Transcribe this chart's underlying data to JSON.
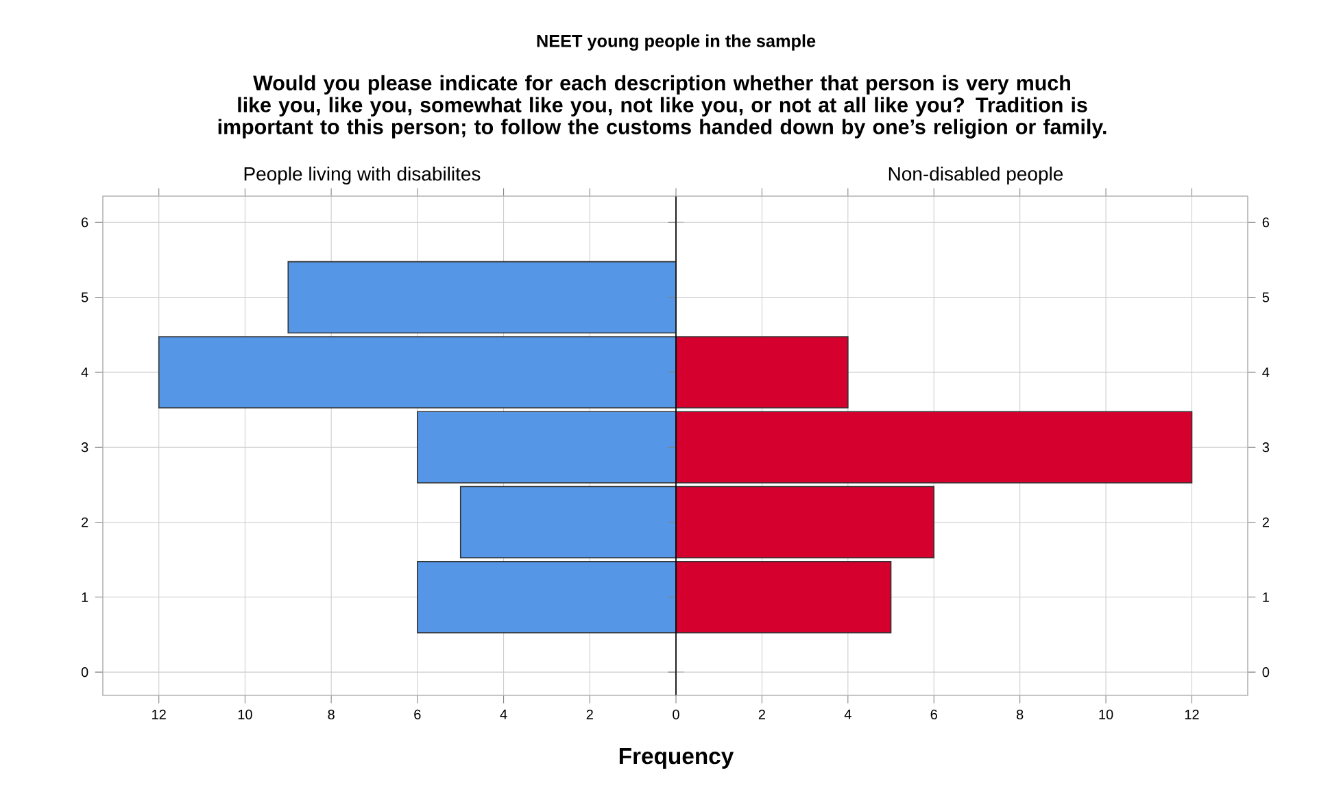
{
  "chart_data": [
    {
      "type": "bar",
      "orientation": "horizontal",
      "title": "People living with disabilites",
      "annotations": [
        "NEET young people in the sample",
        "Would you please indicate for each description whether that person is very much like you, like you, somewhat like you, not like you, or not at all like you? Tradition  is  important  to this person; to follow  the customs handed down by one’s religion or family."
      ],
      "xlabel": "Frequency",
      "categories": [
        "6",
        "5",
        "4",
        "3",
        "2",
        "1",
        "0"
      ],
      "values": [
        null,
        9,
        12,
        6,
        5,
        6,
        null
      ],
      "color": "#5596e6",
      "xlim": [
        13.3,
        0
      ],
      "xticks": [
        2,
        4,
        6,
        8,
        10,
        12
      ],
      "grid": true
    },
    {
      "type": "bar",
      "orientation": "horizontal",
      "title": "Non-disabled people",
      "categories": [
        "6",
        "5",
        "4",
        "3",
        "2",
        "1",
        "0"
      ],
      "values": [
        null,
        null,
        4,
        12,
        6,
        5,
        null
      ],
      "color": "#d5002e",
      "xlim": [
        0,
        13.3
      ],
      "xticks": [
        0,
        2,
        4,
        6,
        8,
        10,
        12
      ],
      "grid": true
    }
  ]
}
